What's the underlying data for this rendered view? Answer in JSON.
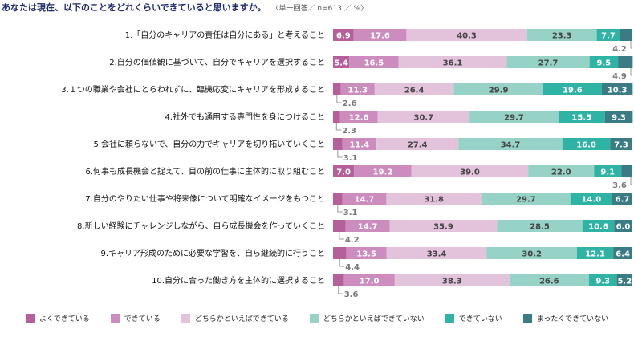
{
  "header": {
    "title": "あなたは現在、以下のことをどれくらいできていると思いますか。",
    "note": "〈単一回答／ n=613 ／ %〉"
  },
  "chart_data": {
    "type": "bar",
    "orientation": "horizontal",
    "stacked": true,
    "unit": "%",
    "xlim": [
      0,
      100
    ],
    "categories": [
      "1.「自分のキャリアの責任は自分にある」と考えること",
      "2.自分の価値観に基づいて、自分でキャリアを選択すること",
      "3.１つの職業や会社にとらわれずに、臨機応変にキャリアを形成すること",
      "4.社外でも通用する専門性を身につけること",
      "5.会社に頼らないで、自分の力でキャリアを切り拓いていくこと",
      "6.何事も成長機会と捉えて、目の前の仕事に主体的に取り組むこと",
      "7.自分のやりたい仕事や将来像について明確なイメージをもつこと",
      "8.新しい経験にチャレンジしながら、自ら成長機会を作っていくこと",
      "9.キャリア形成のために必要な学習を、自ら継続的に行うこと",
      "10.自分に合った働き方を主体的に選択すること"
    ],
    "series": [
      {
        "name": "よくできている",
        "color": "#b5609a",
        "values": [
          6.9,
          5.4,
          2.6,
          2.3,
          3.1,
          7.0,
          3.1,
          4.2,
          4.4,
          3.6
        ]
      },
      {
        "name": "できている",
        "color": "#cc8cbd",
        "values": [
          17.6,
          16.5,
          11.3,
          12.6,
          11.4,
          19.2,
          14.7,
          14.7,
          13.5,
          17.0
        ]
      },
      {
        "name": "どちらかといえばできている",
        "color": "#e3c2dc",
        "values": [
          40.3,
          36.1,
          26.4,
          30.7,
          27.4,
          39.0,
          31.8,
          35.9,
          33.4,
          38.3
        ]
      },
      {
        "name": "どちらかといえばできていない",
        "color": "#96d2c6",
        "values": [
          23.3,
          27.7,
          29.9,
          29.7,
          34.7,
          22.0,
          29.7,
          28.5,
          30.2,
          26.6
        ]
      },
      {
        "name": "できていない",
        "color": "#2fb3a5",
        "values": [
          7.7,
          9.5,
          19.6,
          15.5,
          16.0,
          9.1,
          14.0,
          10.6,
          12.1,
          9.3
        ]
      },
      {
        "name": "まったくできていない",
        "color": "#3a7b84",
        "values": [
          4.2,
          4.9,
          10.3,
          9.3,
          7.3,
          3.6,
          6.7,
          6.0,
          6.4,
          5.2
        ]
      }
    ]
  }
}
